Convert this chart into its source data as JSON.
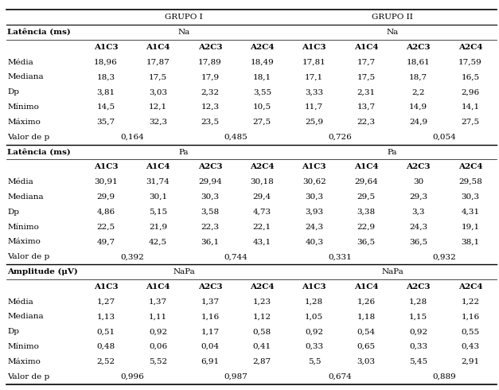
{
  "col_labels": [
    "A1C3",
    "A1C4",
    "A2C3",
    "A2C4",
    "A1C3",
    "A1C4",
    "A2C3",
    "A2C4"
  ],
  "section1": {
    "latencia_label": "Latência (ms)",
    "na_labels": [
      "Na",
      "Na"
    ],
    "rows": [
      {
        "label": "Média",
        "g1": [
          "18,96",
          "17,87",
          "17,89",
          "18,49"
        ],
        "g2": [
          "17,81",
          "17,7",
          "18,61",
          "17,59"
        ]
      },
      {
        "label": "Mediana",
        "g1": [
          "18,3",
          "17,5",
          "17,9",
          "18,1"
        ],
        "g2": [
          "17,1",
          "17,5",
          "18,7",
          "16,5"
        ]
      },
      {
        "label": "Dp",
        "g1": [
          "3,81",
          "3,03",
          "2,32",
          "3,55"
        ],
        "g2": [
          "3,33",
          "2,31",
          "2,2",
          "2,96"
        ]
      },
      {
        "label": "Mínimo",
        "g1": [
          "14,5",
          "12,1",
          "12,3",
          "10,5"
        ],
        "g2": [
          "11,7",
          "13,7",
          "14,9",
          "14,1"
        ]
      },
      {
        "label": "Máximo",
        "g1": [
          "35,7",
          "32,3",
          "23,5",
          "27,5"
        ],
        "g2": [
          "25,9",
          "22,3",
          "24,9",
          "27,5"
        ]
      }
    ],
    "valor_p_g1": [
      "0,164",
      "0,485"
    ],
    "valor_p_g2": [
      "0,726",
      "0,054"
    ]
  },
  "section2": {
    "latencia_label": "Latência (ms)",
    "pa_labels": [
      "Pa",
      "Pa"
    ],
    "rows": [
      {
        "label": "Média",
        "g1": [
          "30,91",
          "31,74",
          "29,94",
          "30,18"
        ],
        "g2": [
          "30,62",
          "29,64",
          "30",
          "29,58"
        ]
      },
      {
        "label": "Mediana",
        "g1": [
          "29,9",
          "30,1",
          "30,3",
          "29,4"
        ],
        "g2": [
          "30,3",
          "29,5",
          "29,3",
          "30,3"
        ]
      },
      {
        "label": "Dp",
        "g1": [
          "4,86",
          "5,15",
          "3,58",
          "4,73"
        ],
        "g2": [
          "3,93",
          "3,38",
          "3,3",
          "4,31"
        ]
      },
      {
        "label": "Mínimo",
        "g1": [
          "22,5",
          "21,9",
          "22,3",
          "22,1"
        ],
        "g2": [
          "24,3",
          "22,9",
          "24,3",
          "19,1"
        ]
      },
      {
        "label": "Máximo",
        "g1": [
          "49,7",
          "42,5",
          "36,1",
          "43,1"
        ],
        "g2": [
          "40,3",
          "36,5",
          "36,5",
          "38,1"
        ]
      }
    ],
    "valor_p_g1": [
      "0,392",
      "0,744"
    ],
    "valor_p_g2": [
      "0,331",
      "0,932"
    ]
  },
  "section3": {
    "amplitude_label": "Amplitude (μV)",
    "napa_labels": [
      "NaPa",
      "NaPa"
    ],
    "rows": [
      {
        "label": "Média",
        "g1": [
          "1,27",
          "1,37",
          "1,37",
          "1,23"
        ],
        "g2": [
          "1,28",
          "1,26",
          "1,28",
          "1,22"
        ]
      },
      {
        "label": "Mediana",
        "g1": [
          "1,13",
          "1,11",
          "1,16",
          "1,12"
        ],
        "g2": [
          "1,05",
          "1,18",
          "1,15",
          "1,16"
        ]
      },
      {
        "label": "Dp",
        "g1": [
          "0,51",
          "0,92",
          "1,17",
          "0,58"
        ],
        "g2": [
          "0,92",
          "0,54",
          "0,92",
          "0,55"
        ]
      },
      {
        "label": "Mínimo",
        "g1": [
          "0,48",
          "0,06",
          "0,04",
          "0,41"
        ],
        "g2": [
          "0,33",
          "0,65",
          "0,33",
          "0,43"
        ]
      },
      {
        "label": "Máximo",
        "g1": [
          "2,52",
          "5,52",
          "6,91",
          "2,87"
        ],
        "g2": [
          "5,5",
          "3,03",
          "5,45",
          "2,91"
        ]
      }
    ],
    "valor_p_g1": [
      "0,996",
      "0,987"
    ],
    "valor_p_g2": [
      "0,674",
      "0,889"
    ]
  },
  "font_family": "serif",
  "fs_header": 7.5,
  "fs_data": 7.5,
  "fs_bold": 7.5
}
